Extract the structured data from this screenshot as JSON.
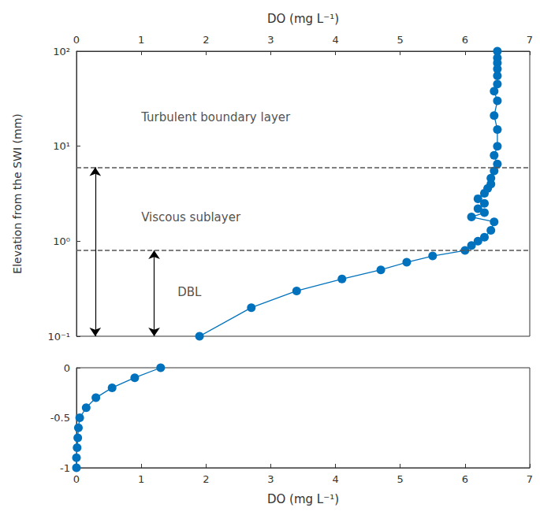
{
  "chart_data": [
    {
      "type": "line",
      "x_label": "DO (mg L⁻¹)",
      "y_label": "Elevation from the SWI (mm)",
      "x": [
        1.9,
        2.7,
        3.4,
        4.1,
        4.7,
        5.1,
        5.5,
        6.0,
        6.1,
        6.2,
        6.3,
        6.4,
        6.45,
        6.1,
        6.3,
        6.2,
        6.3,
        6.2,
        6.3,
        6.35,
        6.4,
        6.4,
        6.45,
        6.5,
        6.45,
        6.5,
        6.5,
        6.45,
        6.5,
        6.45,
        6.5,
        6.5,
        6.5,
        6.5,
        6.5,
        6.5
      ],
      "values": [
        0.1,
        0.2,
        0.3,
        0.4,
        0.5,
        0.6,
        0.7,
        0.8,
        0.9,
        1.0,
        1.1,
        1.3,
        1.6,
        1.8,
        2.0,
        2.2,
        2.5,
        2.8,
        3.2,
        3.6,
        4.0,
        4.6,
        5.5,
        6.5,
        8,
        10,
        15,
        21,
        30,
        38,
        45,
        55,
        65,
        75,
        85,
        100
      ],
      "color": "#0072bd",
      "marker": "circle",
      "line_style": "solid",
      "xlim": [
        0,
        7
      ],
      "xticks": [
        0,
        1,
        2,
        3,
        4,
        5,
        6,
        7
      ],
      "ylim": [
        0.1,
        100
      ],
      "yticks": [
        {
          "value": 0.1,
          "label": "10⁻¹"
        },
        {
          "value": 1,
          "label": "10⁰"
        },
        {
          "value": 10,
          "label": "10¹"
        },
        {
          "value": 100,
          "label": "10²"
        }
      ],
      "log": "y",
      "grid": false,
      "reference_lines": [
        6,
        0.8
      ],
      "arrows": [
        {
          "x": 0.29,
          "from": 0.1,
          "to": 6
        },
        {
          "x": 1.2,
          "from": 0.1,
          "to": 0.8
        }
      ],
      "annotations": [
        {
          "text": "Turbulent boundary layer",
          "x": 1.0,
          "y": 20
        },
        {
          "text": "Viscous sublayer",
          "x": 1.0,
          "y": 1.8
        },
        {
          "text": "DBL",
          "x": 1.56,
          "y": 0.29
        }
      ]
    },
    {
      "type": "line",
      "x_label": "DO (mg L⁻¹)",
      "x": [
        1.3,
        0.9,
        0.55,
        0.3,
        0.15,
        0.05,
        0.03,
        0.02,
        0.01,
        0.0,
        0.0
      ],
      "values": [
        0,
        -0.1,
        -0.2,
        -0.3,
        -0.4,
        -0.5,
        -0.6,
        -0.7,
        -0.8,
        -0.9,
        -1
      ],
      "color": "#0072bd",
      "marker": "circle",
      "line_style": "solid",
      "xlim": [
        0,
        7
      ],
      "xticks": [
        0,
        1,
        2,
        3,
        4,
        5,
        6,
        7
      ],
      "ylim": [
        -1,
        0
      ],
      "yticks": [
        -1,
        -0.5,
        0
      ],
      "grid": false
    }
  ]
}
